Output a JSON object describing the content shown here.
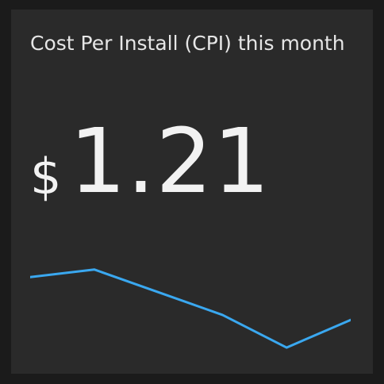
{
  "card": {
    "title": "Cost Per Install (CPI) this month",
    "currency_symbol": "$",
    "value": "1.21"
  },
  "colors": {
    "background": "#1b1b1b",
    "card": "#2a2a2a",
    "text": "#f2f2f2",
    "line": "#3aa8f0"
  },
  "sparkline": {
    "type": "line",
    "values": [
      0.85,
      1.0,
      0.55,
      0.1,
      -0.55,
      0.0
    ]
  }
}
